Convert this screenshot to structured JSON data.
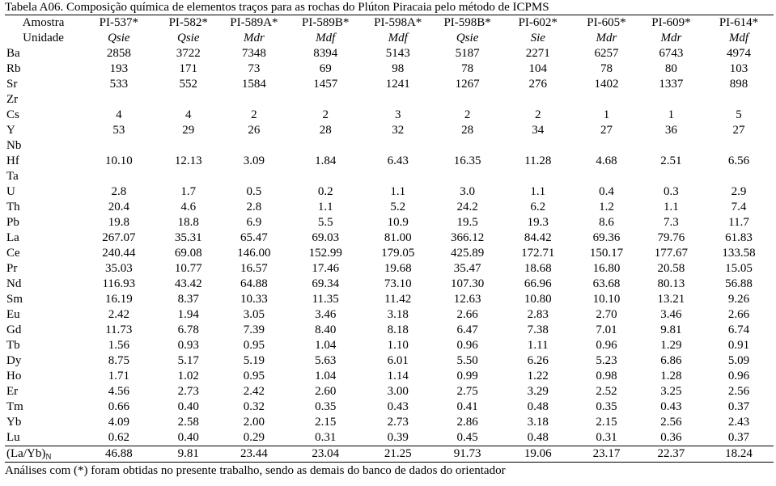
{
  "caption": "Tabela A06. Composição química de elementos traços para as rochas do Plúton Piracaia pelo método de ICPMS",
  "header_label": "Amostra",
  "unit_label": "Unidade",
  "samples": [
    "PI-537*",
    "PI-582*",
    "PI-589A*",
    "PI-589B*",
    "PI-598A*",
    "PI-598B*",
    "PI-602*",
    "PI-605*",
    "PI-609*",
    "PI-614*"
  ],
  "units": [
    "Qsie",
    "Qsie",
    "Mdr",
    "Mdf",
    "Mdf",
    "Qsie",
    "Sie",
    "Mdr",
    "Mdr",
    "Mdf"
  ],
  "rows": [
    {
      "element": "Ba",
      "values": [
        "2858",
        "3722",
        "7348",
        "8394",
        "5143",
        "5187",
        "2271",
        "6257",
        "6743",
        "4974"
      ]
    },
    {
      "element": "Rb",
      "values": [
        "193",
        "171",
        "73",
        "69",
        "98",
        "78",
        "104",
        "78",
        "80",
        "103"
      ]
    },
    {
      "element": "Sr",
      "values": [
        "533",
        "552",
        "1584",
        "1457",
        "1241",
        "1267",
        "276",
        "1402",
        "1337",
        "898"
      ]
    },
    {
      "element": "Zr",
      "values": [
        "",
        "",
        "",
        "",
        "",
        "",
        "",
        "",
        "",
        ""
      ]
    },
    {
      "element": "Cs",
      "values": [
        "4",
        "4",
        "2",
        "2",
        "3",
        "2",
        "2",
        "1",
        "1",
        "5"
      ]
    },
    {
      "element": "Y",
      "values": [
        "53",
        "29",
        "26",
        "28",
        "32",
        "28",
        "34",
        "27",
        "36",
        "27"
      ]
    },
    {
      "element": "Nb",
      "values": [
        "",
        "",
        "",
        "",
        "",
        "",
        "",
        "",
        "",
        ""
      ]
    },
    {
      "element": "Hf",
      "values": [
        "10.10",
        "12.13",
        "3.09",
        "1.84",
        "6.43",
        "16.35",
        "11.28",
        "4.68",
        "2.51",
        "6.56"
      ]
    },
    {
      "element": "Ta",
      "values": [
        "",
        "",
        "",
        "",
        "",
        "",
        "",
        "",
        "",
        ""
      ]
    },
    {
      "element": "U",
      "values": [
        "2.8",
        "1.7",
        "0.5",
        "0.2",
        "1.1",
        "3.0",
        "1.1",
        "0.4",
        "0.3",
        "2.9"
      ]
    },
    {
      "element": "Th",
      "values": [
        "20.4",
        "4.6",
        "2.8",
        "1.1",
        "5.2",
        "24.2",
        "6.2",
        "1.2",
        "1.1",
        "7.4"
      ]
    },
    {
      "element": "Pb",
      "values": [
        "19.8",
        "18.8",
        "6.9",
        "5.5",
        "10.9",
        "19.5",
        "19.3",
        "8.6",
        "7.3",
        "11.7"
      ]
    },
    {
      "element": "La",
      "values": [
        "267.07",
        "35.31",
        "65.47",
        "69.03",
        "81.00",
        "366.12",
        "84.42",
        "69.36",
        "79.76",
        "61.83"
      ]
    },
    {
      "element": "Ce",
      "values": [
        "240.44",
        "69.08",
        "146.00",
        "152.99",
        "179.05",
        "425.89",
        "172.71",
        "150.17",
        "177.67",
        "133.58"
      ]
    },
    {
      "element": "Pr",
      "values": [
        "35.03",
        "10.77",
        "16.57",
        "17.46",
        "19.68",
        "35.47",
        "18.68",
        "16.80",
        "20.58",
        "15.05"
      ]
    },
    {
      "element": "Nd",
      "values": [
        "116.93",
        "43.42",
        "64.88",
        "69.34",
        "73.10",
        "107.30",
        "66.96",
        "63.68",
        "80.13",
        "56.88"
      ]
    },
    {
      "element": "Sm",
      "values": [
        "16.19",
        "8.37",
        "10.33",
        "11.35",
        "11.42",
        "12.63",
        "10.80",
        "10.10",
        "13.21",
        "9.26"
      ]
    },
    {
      "element": "Eu",
      "values": [
        "2.42",
        "1.94",
        "3.05",
        "3.46",
        "3.18",
        "2.66",
        "2.83",
        "2.70",
        "3.46",
        "2.66"
      ]
    },
    {
      "element": "Gd",
      "values": [
        "11.73",
        "6.78",
        "7.39",
        "8.40",
        "8.18",
        "6.47",
        "7.38",
        "7.01",
        "9.81",
        "6.74"
      ]
    },
    {
      "element": "Tb",
      "values": [
        "1.56",
        "0.93",
        "0.95",
        "1.04",
        "1.10",
        "0.96",
        "1.11",
        "0.96",
        "1.29",
        "0.91"
      ]
    },
    {
      "element": "Dy",
      "values": [
        "8.75",
        "5.17",
        "5.19",
        "5.63",
        "6.01",
        "5.50",
        "6.26",
        "5.23",
        "6.86",
        "5.09"
      ]
    },
    {
      "element": "Ho",
      "values": [
        "1.71",
        "1.02",
        "0.95",
        "1.04",
        "1.14",
        "0.99",
        "1.22",
        "0.98",
        "1.28",
        "0.96"
      ]
    },
    {
      "element": "Er",
      "values": [
        "4.56",
        "2.73",
        "2.42",
        "2.60",
        "3.00",
        "2.75",
        "3.29",
        "2.52",
        "3.25",
        "2.56"
      ]
    },
    {
      "element": "Tm",
      "values": [
        "0.66",
        "0.40",
        "0.32",
        "0.35",
        "0.43",
        "0.41",
        "0.48",
        "0.35",
        "0.43",
        "0.37"
      ]
    },
    {
      "element": "Yb",
      "values": [
        "4.09",
        "2.58",
        "2.00",
        "2.15",
        "2.73",
        "2.86",
        "3.18",
        "2.15",
        "2.56",
        "2.43"
      ]
    },
    {
      "element": "Lu",
      "values": [
        "0.62",
        "0.40",
        "0.29",
        "0.31",
        "0.39",
        "0.45",
        "0.48",
        "0.31",
        "0.36",
        "0.37"
      ]
    }
  ],
  "ratio_row": {
    "label": "(La/Yb)",
    "label_subscript": "N",
    "values": [
      "46.88",
      "9.81",
      "23.44",
      "23.04",
      "21.25",
      "91.73",
      "19.06",
      "23.17",
      "22.37",
      "18.24"
    ]
  },
  "footnote": "Análises com (*) foram obtidas no presente trabalho, sendo as demais do banco de dados do orientador"
}
